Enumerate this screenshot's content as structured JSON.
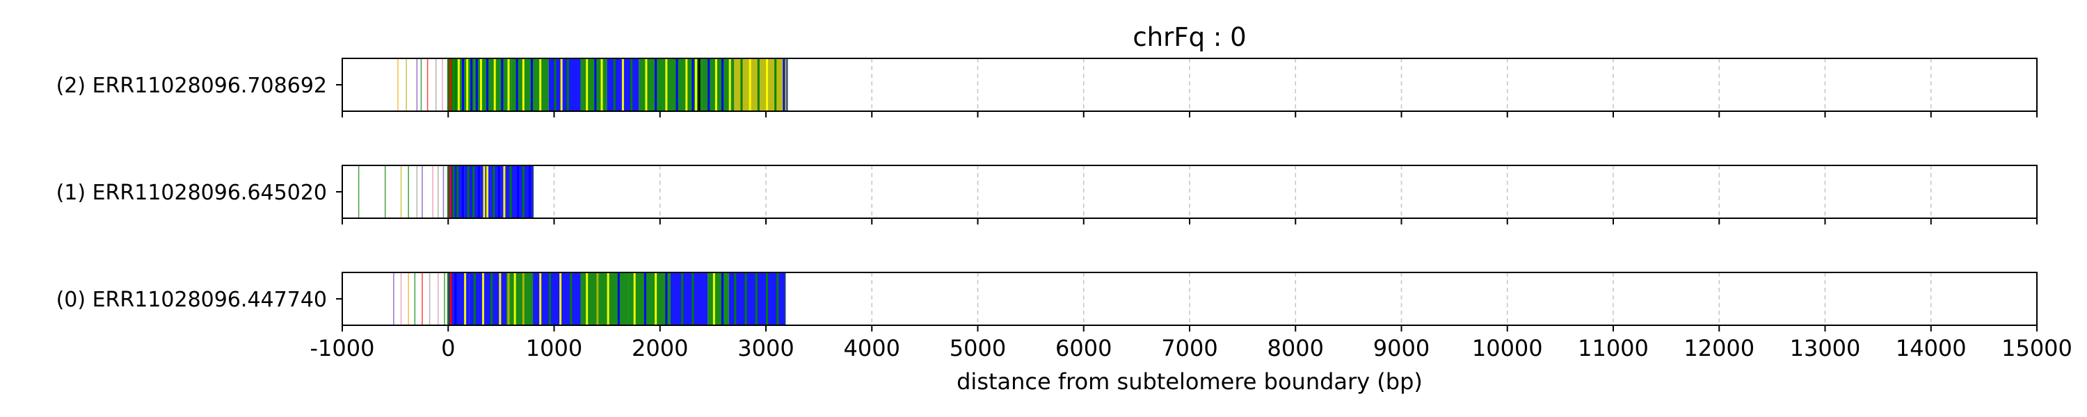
{
  "chart_data": {
    "type": "read-track",
    "title": "chrFq : 0",
    "xlabel": "distance from subtelomere boundary (bp)",
    "xlim": [
      -1000,
      15000
    ],
    "xticks": [
      -1000,
      0,
      1000,
      2000,
      3000,
      4000,
      5000,
      6000,
      7000,
      8000,
      9000,
      10000,
      11000,
      12000,
      13000,
      14000,
      15000
    ],
    "xtick_labels": [
      "-1000",
      "0",
      "1000",
      "2000",
      "3000",
      "4000",
      "5000",
      "6000",
      "7000",
      "8000",
      "9000",
      "10000",
      "11000",
      "12000",
      "13000",
      "14000",
      "15000"
    ],
    "grid": "vertical dashed at x ticks",
    "colors": {
      "blue": "#0000ff",
      "green": "#008000",
      "yellow": "#ffff00",
      "olive": "#b5b500",
      "red": "#ff0000",
      "orange": "#ffa500",
      "purple": "#7a3fbf",
      "gray": "#9a9a9a",
      "pink": "#e48aa8",
      "black": "#000000",
      "subtelomere_boundary": "#008000"
    },
    "reads": [
      {
        "label": "(2) ERR11028096.708692",
        "start": -480,
        "end": 3200,
        "segments": [
          {
            "start": 0,
            "end": 250,
            "color": "green"
          },
          {
            "start": 250,
            "end": 600,
            "color": "green"
          },
          {
            "start": 600,
            "end": 950,
            "color": "green"
          },
          {
            "start": 950,
            "end": 1250,
            "color": "blue"
          },
          {
            "start": 1250,
            "end": 1500,
            "color": "green"
          },
          {
            "start": 1500,
            "end": 1800,
            "color": "blue"
          },
          {
            "start": 1800,
            "end": 2400,
            "color": "green"
          },
          {
            "start": 2400,
            "end": 2700,
            "color": "green"
          },
          {
            "start": 2700,
            "end": 3200,
            "color": "olive"
          }
        ],
        "marks": [
          {
            "x": -480,
            "color": "orange"
          },
          {
            "x": -400,
            "color": "olive"
          },
          {
            "x": -300,
            "color": "purple"
          },
          {
            "x": -260,
            "color": "green"
          },
          {
            "x": -200,
            "color": "red"
          },
          {
            "x": -120,
            "color": "gray"
          },
          {
            "x": -60,
            "color": "pink"
          },
          {
            "x": 10,
            "color": "red"
          },
          {
            "x": 30,
            "color": "green"
          },
          {
            "x": 60,
            "color": "green"
          },
          {
            "x": 90,
            "color": "yellow"
          },
          {
            "x": 130,
            "color": "blue"
          },
          {
            "x": 170,
            "color": "yellow"
          },
          {
            "x": 210,
            "color": "blue"
          },
          {
            "x": 260,
            "color": "blue"
          },
          {
            "x": 300,
            "color": "yellow"
          },
          {
            "x": 360,
            "color": "blue"
          },
          {
            "x": 430,
            "color": "yellow"
          },
          {
            "x": 500,
            "color": "blue"
          },
          {
            "x": 560,
            "color": "yellow"
          },
          {
            "x": 640,
            "color": "blue"
          },
          {
            "x": 700,
            "color": "yellow"
          },
          {
            "x": 780,
            "color": "blue"
          },
          {
            "x": 860,
            "color": "yellow"
          },
          {
            "x": 1000,
            "color": "green"
          },
          {
            "x": 1060,
            "color": "yellow"
          },
          {
            "x": 1120,
            "color": "green"
          },
          {
            "x": 1300,
            "color": "yellow"
          },
          {
            "x": 1380,
            "color": "blue"
          },
          {
            "x": 1440,
            "color": "yellow"
          },
          {
            "x": 1560,
            "color": "green"
          },
          {
            "x": 1640,
            "color": "yellow"
          },
          {
            "x": 1720,
            "color": "green"
          },
          {
            "x": 1860,
            "color": "yellow"
          },
          {
            "x": 1950,
            "color": "blue"
          },
          {
            "x": 2050,
            "color": "yellow"
          },
          {
            "x": 2150,
            "color": "blue"
          },
          {
            "x": 2240,
            "color": "yellow"
          },
          {
            "x": 2300,
            "color": "blue"
          },
          {
            "x": 2330,
            "color": "yellow"
          },
          {
            "x": 2360,
            "color": "black"
          },
          {
            "x": 2450,
            "color": "blue"
          },
          {
            "x": 2520,
            "color": "yellow"
          },
          {
            "x": 2580,
            "color": "blue"
          },
          {
            "x": 2650,
            "color": "yellow"
          },
          {
            "x": 2760,
            "color": "green"
          },
          {
            "x": 2840,
            "color": "yellow"
          },
          {
            "x": 2920,
            "color": "green"
          },
          {
            "x": 3000,
            "color": "yellow"
          },
          {
            "x": 3080,
            "color": "green"
          },
          {
            "x": 3160,
            "color": "blue"
          }
        ]
      },
      {
        "label": "(1) ERR11028096.645020",
        "start": -1000,
        "end": 800,
        "segments": [
          {
            "start": 0,
            "end": 150,
            "color": "blue"
          },
          {
            "start": 150,
            "end": 400,
            "color": "blue"
          },
          {
            "start": 400,
            "end": 800,
            "color": "blue"
          }
        ],
        "marks": [
          {
            "x": -850,
            "color": "green"
          },
          {
            "x": -600,
            "color": "green"
          },
          {
            "x": -450,
            "color": "olive"
          },
          {
            "x": -380,
            "color": "green"
          },
          {
            "x": -300,
            "color": "gray"
          },
          {
            "x": -250,
            "color": "purple"
          },
          {
            "x": -150,
            "color": "pink"
          },
          {
            "x": -100,
            "color": "gray"
          },
          {
            "x": -50,
            "color": "purple"
          },
          {
            "x": 10,
            "color": "red"
          },
          {
            "x": 40,
            "color": "green"
          },
          {
            "x": 80,
            "color": "green"
          },
          {
            "x": 130,
            "color": "blue"
          },
          {
            "x": 180,
            "color": "green"
          },
          {
            "x": 230,
            "color": "green"
          },
          {
            "x": 280,
            "color": "blue"
          },
          {
            "x": 330,
            "color": "yellow"
          },
          {
            "x": 360,
            "color": "yellow"
          },
          {
            "x": 420,
            "color": "green"
          },
          {
            "x": 470,
            "color": "blue"
          },
          {
            "x": 520,
            "color": "yellow"
          },
          {
            "x": 580,
            "color": "green"
          },
          {
            "x": 650,
            "color": "blue"
          },
          {
            "x": 700,
            "color": "green"
          },
          {
            "x": 760,
            "color": "blue"
          }
        ]
      },
      {
        "label": "(0) ERR11028096.447740",
        "start": -520,
        "end": 3180,
        "segments": [
          {
            "start": 0,
            "end": 200,
            "color": "blue"
          },
          {
            "start": 200,
            "end": 550,
            "color": "blue"
          },
          {
            "start": 550,
            "end": 800,
            "color": "green"
          },
          {
            "start": 800,
            "end": 1250,
            "color": "blue"
          },
          {
            "start": 1250,
            "end": 1700,
            "color": "green"
          },
          {
            "start": 1700,
            "end": 2100,
            "color": "green"
          },
          {
            "start": 2100,
            "end": 2450,
            "color": "blue"
          },
          {
            "start": 2450,
            "end": 2650,
            "color": "green"
          },
          {
            "start": 2650,
            "end": 3180,
            "color": "blue"
          }
        ],
        "marks": [
          {
            "x": -520,
            "color": "purple"
          },
          {
            "x": -450,
            "color": "pink"
          },
          {
            "x": -380,
            "color": "orange"
          },
          {
            "x": -320,
            "color": "green"
          },
          {
            "x": -250,
            "color": "red"
          },
          {
            "x": -180,
            "color": "gray"
          },
          {
            "x": -100,
            "color": "pink"
          },
          {
            "x": -40,
            "color": "green"
          },
          {
            "x": 15,
            "color": "red"
          },
          {
            "x": 60,
            "color": "blue"
          },
          {
            "x": 150,
            "color": "yellow"
          },
          {
            "x": 240,
            "color": "green"
          },
          {
            "x": 320,
            "color": "yellow"
          },
          {
            "x": 400,
            "color": "green"
          },
          {
            "x": 480,
            "color": "yellow"
          },
          {
            "x": 560,
            "color": "olive"
          },
          {
            "x": 620,
            "color": "yellow"
          },
          {
            "x": 700,
            "color": "olive"
          },
          {
            "x": 860,
            "color": "yellow"
          },
          {
            "x": 950,
            "color": "green"
          },
          {
            "x": 1050,
            "color": "yellow"
          },
          {
            "x": 1150,
            "color": "green"
          },
          {
            "x": 1300,
            "color": "yellow"
          },
          {
            "x": 1400,
            "color": "olive"
          },
          {
            "x": 1500,
            "color": "yellow"
          },
          {
            "x": 1600,
            "color": "blue"
          },
          {
            "x": 1750,
            "color": "yellow"
          },
          {
            "x": 1850,
            "color": "blue"
          },
          {
            "x": 1950,
            "color": "yellow"
          },
          {
            "x": 2050,
            "color": "blue"
          },
          {
            "x": 2200,
            "color": "green"
          },
          {
            "x": 2300,
            "color": "green"
          },
          {
            "x": 2500,
            "color": "yellow"
          },
          {
            "x": 2580,
            "color": "blue"
          },
          {
            "x": 2700,
            "color": "green"
          },
          {
            "x": 2800,
            "color": "green"
          },
          {
            "x": 2900,
            "color": "green"
          },
          {
            "x": 3000,
            "color": "green"
          },
          {
            "x": 3100,
            "color": "green"
          }
        ]
      }
    ]
  }
}
